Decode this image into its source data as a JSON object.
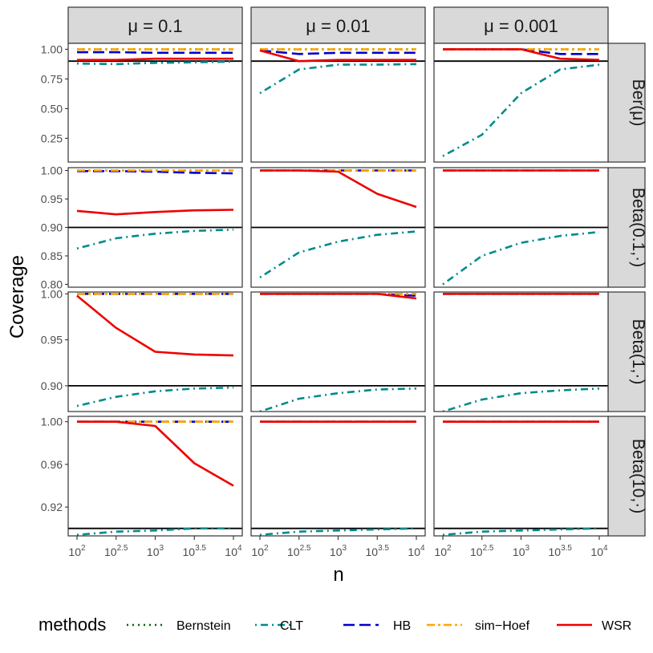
{
  "chart_data": {
    "type": "line",
    "facets": {
      "columns": [
        "μ = 0.1",
        "μ = 0.01",
        "μ = 0.001"
      ],
      "rows": [
        "Ber(μ)",
        "Beta(0.1,·)",
        "Beta(1,·)",
        "Beta(10,·)"
      ]
    },
    "x_axis": {
      "label": "n",
      "scale": "log10",
      "values": [
        100,
        316.2,
        1000,
        3162.3,
        10000
      ],
      "tick_labels": [
        {
          "base": "10",
          "exp": "2"
        },
        {
          "base": "10",
          "exp": "2.5"
        },
        {
          "base": "10",
          "exp": "3"
        },
        {
          "base": "10",
          "exp": "3.5"
        },
        {
          "base": "10",
          "exp": "4"
        }
      ]
    },
    "y_axis": {
      "label": "Coverage",
      "rows": [
        {
          "ylim": [
            0.05,
            1.05
          ],
          "ticks": [
            0.25,
            0.5,
            0.75,
            1.0
          ],
          "tick_labels": [
            "0.25",
            "0.50",
            "0.75",
            "1.00"
          ]
        },
        {
          "ylim": [
            0.795,
            1.005
          ],
          "ticks": [
            0.8,
            0.85,
            0.9,
            0.95,
            1.0
          ],
          "tick_labels": [
            "0.80",
            "0.85",
            "0.90",
            "0.95",
            "1.00"
          ]
        },
        {
          "ylim": [
            0.872,
            1.002
          ],
          "ticks": [
            0.9,
            0.95,
            1.0
          ],
          "tick_labels": [
            "0.90",
            "0.95",
            "1.00"
          ]
        },
        {
          "ylim": [
            0.893,
            1.005
          ],
          "ticks": [
            0.92,
            0.96,
            1.0
          ],
          "tick_labels": [
            "0.92",
            "0.96",
            "1.00"
          ]
        }
      ]
    },
    "reference_line": 0.9,
    "legend": {
      "title": "methods",
      "position": "bottom",
      "items": [
        {
          "name": "Bernstein",
          "color": "#006400",
          "dash": "dotted"
        },
        {
          "name": "CLT",
          "color": "#008B8B",
          "dash": "dotdash"
        },
        {
          "name": "HB",
          "color": "#0000CD",
          "dash": "longdash"
        },
        {
          "name": "sim−Hoef",
          "color": "#FFA500",
          "dash": "twodash"
        },
        {
          "name": "WSR",
          "color": "#EE0000",
          "dash": "solid"
        }
      ]
    },
    "panels": [
      [
        {
          "series": {
            "Bernstein": [
              1,
              1,
              1,
              1,
              1
            ],
            "CLT": [
              0.88,
              0.875,
              0.885,
              0.89,
              0.895
            ],
            "HB": [
              0.975,
              0.975,
              0.97,
              0.97,
              0.97
            ],
            "sim−Hoef": [
              1,
              1,
              1,
              1,
              1
            ],
            "WSR": [
              0.91,
              0.91,
              0.92,
              0.92,
              0.92
            ]
          }
        },
        {
          "series": {
            "Bernstein": [
              1,
              1,
              1,
              1,
              1
            ],
            "CLT": [
              0.63,
              0.83,
              0.87,
              0.87,
              0.875
            ],
            "HB": [
              0.99,
              0.96,
              0.97,
              0.97,
              0.97
            ],
            "sim−Hoef": [
              1,
              1,
              1,
              1,
              1
            ],
            "WSR": [
              0.99,
              0.9,
              0.91,
              0.91,
              0.91
            ]
          }
        },
        {
          "series": {
            "Bernstein": [
              1,
              1,
              1,
              1,
              1
            ],
            "CLT": [
              0.1,
              0.28,
              0.63,
              0.83,
              0.87
            ],
            "HB": [
              1,
              1,
              1,
              0.96,
              0.96
            ],
            "sim−Hoef": [
              1,
              1,
              1,
              1,
              1
            ],
            "WSR": [
              1,
              1,
              1,
              0.92,
              0.91
            ]
          }
        }
      ],
      [
        {
          "series": {
            "Bernstein": [
              1,
              1,
              1,
              1,
              1
            ],
            "CLT": [
              0.863,
              0.881,
              0.889,
              0.894,
              0.896
            ],
            "HB": [
              0.999,
              0.999,
              0.998,
              0.996,
              0.995
            ],
            "sim−Hoef": [
              1,
              1,
              1,
              1,
              1
            ],
            "WSR": [
              0.929,
              0.923,
              0.927,
              0.93,
              0.931
            ]
          }
        },
        {
          "series": {
            "Bernstein": [
              1,
              1,
              1,
              1,
              1
            ],
            "CLT": [
              0.812,
              0.856,
              0.875,
              0.887,
              0.893
            ],
            "HB": [
              1,
              1,
              1,
              1,
              1
            ],
            "sim−Hoef": [
              1,
              1,
              1,
              1,
              1
            ],
            "WSR": [
              1,
              1,
              0.998,
              0.959,
              0.936
            ]
          }
        },
        {
          "series": {
            "Bernstein": [
              1,
              1,
              1,
              1,
              1
            ],
            "CLT": [
              0.8,
              0.85,
              0.873,
              0.885,
              0.892
            ],
            "HB": [
              1,
              1,
              1,
              1,
              1
            ],
            "sim−Hoef": [
              1,
              1,
              1,
              1,
              1
            ],
            "WSR": [
              1,
              1,
              1,
              1,
              1
            ]
          }
        }
      ],
      [
        {
          "series": {
            "Bernstein": [
              1,
              1,
              1,
              1,
              1
            ],
            "CLT": [
              0.878,
              0.888,
              0.894,
              0.897,
              0.898
            ],
            "HB": [
              1,
              1,
              1,
              1,
              1
            ],
            "sim−Hoef": [
              1,
              1,
              1,
              1,
              1
            ],
            "WSR": [
              0.998,
              0.963,
              0.937,
              0.934,
              0.933
            ]
          }
        },
        {
          "series": {
            "Bernstein": [
              1,
              1,
              1,
              1,
              1
            ],
            "CLT": [
              0.872,
              0.886,
              0.892,
              0.896,
              0.897
            ],
            "HB": [
              1,
              1,
              1,
              1,
              0.998
            ],
            "sim−Hoef": [
              1,
              1,
              1,
              1,
              1
            ],
            "WSR": [
              1,
              1,
              1,
              1,
              0.995
            ]
          }
        },
        {
          "series": {
            "Bernstein": [
              1,
              1,
              1,
              1,
              1
            ],
            "CLT": [
              0.872,
              0.885,
              0.892,
              0.895,
              0.897
            ],
            "HB": [
              1,
              1,
              1,
              1,
              1
            ],
            "sim−Hoef": [
              1,
              1,
              1,
              1,
              1
            ],
            "WSR": [
              1,
              1,
              1,
              1,
              1
            ]
          }
        }
      ],
      [
        {
          "series": {
            "Bernstein": [
              1,
              1,
              1,
              1,
              1
            ],
            "CLT": [
              0.894,
              0.897,
              0.898,
              0.9,
              0.9
            ],
            "HB": [
              1,
              1,
              1,
              1,
              1
            ],
            "sim−Hoef": [
              1,
              1,
              1,
              1,
              1
            ],
            "WSR": [
              1,
              1,
              0.996,
              0.961,
              0.94
            ]
          }
        },
        {
          "series": {
            "Bernstein": [
              1,
              1,
              1,
              1,
              1
            ],
            "CLT": [
              0.894,
              0.897,
              0.898,
              0.899,
              0.9
            ],
            "HB": [
              1,
              1,
              1,
              1,
              1
            ],
            "sim−Hoef": [
              1,
              1,
              1,
              1,
              1
            ],
            "WSR": [
              1,
              1,
              1,
              1,
              1
            ]
          }
        },
        {
          "series": {
            "Bernstein": [
              1,
              1,
              1,
              1,
              1
            ],
            "CLT": [
              0.894,
              0.897,
              0.898,
              0.899,
              0.9
            ],
            "HB": [
              1,
              1,
              1,
              1,
              1
            ],
            "sim−Hoef": [
              1,
              1,
              1,
              1,
              1
            ],
            "WSR": [
              1,
              1,
              1,
              1,
              1
            ]
          }
        }
      ]
    ]
  }
}
